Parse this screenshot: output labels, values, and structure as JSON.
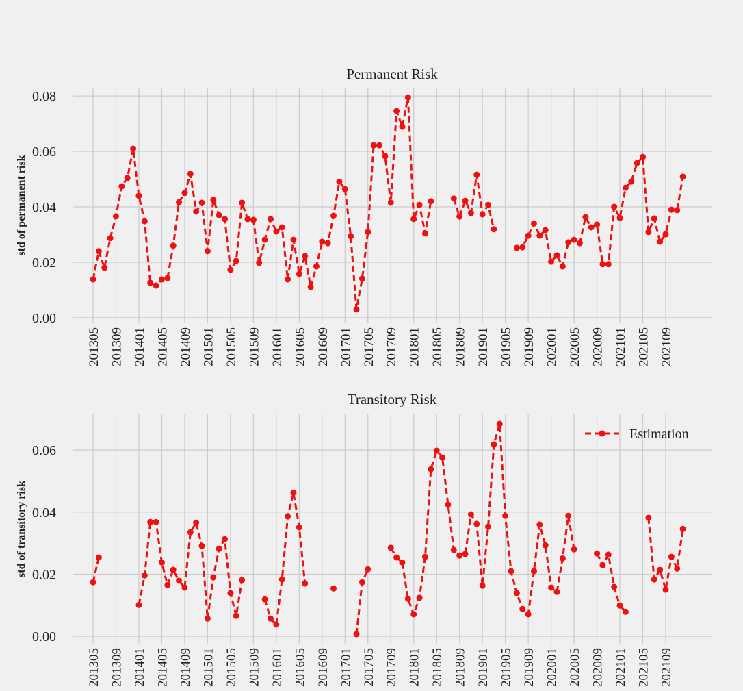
{
  "chart_data": [
    {
      "type": "line",
      "title": "Permanent Risk",
      "y_label": "std of permanent risk",
      "categories": [
        "201305",
        null,
        null,
        null,
        "201309",
        null,
        null,
        null,
        "201401",
        null,
        null,
        null,
        "201405",
        null,
        null,
        null,
        "201409",
        null,
        null,
        null,
        "201501",
        null,
        null,
        null,
        "201505",
        null,
        null,
        null,
        "201509",
        null,
        null,
        null,
        "201601",
        null,
        null,
        null,
        "201605",
        null,
        null,
        null,
        "201609",
        null,
        null,
        null,
        "201701",
        null,
        null,
        null,
        "201705",
        null,
        null,
        null,
        "201709",
        null,
        null,
        null,
        "201801",
        null,
        null,
        null,
        "201805",
        null,
        null,
        null,
        "201809",
        null,
        null,
        null,
        "201901",
        null,
        null,
        null,
        "201905",
        null,
        null,
        null,
        "201909",
        null,
        null,
        null,
        "202001",
        null,
        null,
        null,
        "202005",
        null,
        null,
        null,
        "202009",
        null,
        null,
        null,
        "202101",
        null,
        null,
        null,
        "202105",
        null,
        null,
        null,
        "202109",
        null,
        null,
        null
      ],
      "series": [
        {
          "color": "#ee1111",
          "values": [
            0.0138,
            0.024,
            0.018,
            0.0287,
            0.0366,
            0.0474,
            0.0504,
            0.061,
            0.044,
            0.0348,
            0.0126,
            0.0116,
            0.0138,
            0.0143,
            0.026,
            0.0417,
            0.045,
            0.0519,
            0.0383,
            0.0415,
            0.024,
            0.0425,
            0.037,
            0.0356,
            0.0173,
            0.0205,
            0.0415,
            0.0356,
            0.0353,
            0.0198,
            0.0281,
            0.0356,
            0.0311,
            0.0326,
            0.0138,
            0.0281,
            0.0158,
            0.0222,
            0.0111,
            0.0185,
            0.0274,
            0.0269,
            0.0368,
            0.0491,
            0.0464,
            0.0294,
            0.003,
            0.0141,
            0.0309,
            0.0622,
            0.0622,
            0.0583,
            0.0415,
            0.0746,
            0.0689,
            0.0795,
            0.0356,
            0.0407,
            0.0304,
            0.042,
            null,
            null,
            null,
            0.043,
            0.0365,
            0.0422,
            0.0378,
            0.0516,
            0.0373,
            0.0407,
            0.0319,
            null,
            null,
            null,
            0.0252,
            0.0254,
            0.0296,
            0.034,
            0.0296,
            0.0316,
            0.0202,
            0.0225,
            0.0185,
            0.0272,
            0.0281,
            0.0269,
            0.0363,
            0.0326,
            0.0336,
            0.0193,
            0.0193,
            0.04,
            0.036,
            0.0469,
            0.0491,
            0.0558,
            0.058,
            0.0309,
            0.0358,
            0.0274,
            0.0301,
            0.039,
            0.0388,
            0.0509
          ]
        }
      ],
      "ylim": [
        -0.002,
        0.083
      ],
      "yticks": [
        {
          "value": 0,
          "label": "0.00"
        },
        {
          "value": 0.02,
          "label": "0.02"
        },
        {
          "value": 0.04,
          "label": "0.04"
        },
        {
          "value": 0.06,
          "label": "0.06"
        },
        {
          "value": 0.08,
          "label": "0.08"
        }
      ],
      "grid": true
    },
    {
      "type": "line",
      "title": "Transitory Risk",
      "y_label": "std of transitory risk",
      "categories": [
        "201305",
        null,
        null,
        null,
        "201309",
        null,
        null,
        null,
        "201401",
        null,
        null,
        null,
        "201405",
        null,
        null,
        null,
        "201409",
        null,
        null,
        null,
        "201501",
        null,
        null,
        null,
        "201505",
        null,
        null,
        null,
        "201509",
        null,
        null,
        null,
        "201601",
        null,
        null,
        null,
        "201605",
        null,
        null,
        null,
        "201609",
        null,
        null,
        null,
        "201701",
        null,
        null,
        null,
        "201705",
        null,
        null,
        null,
        "201709",
        null,
        null,
        null,
        "201801",
        null,
        null,
        null,
        "201805",
        null,
        null,
        null,
        "201809",
        null,
        null,
        null,
        "201901",
        null,
        null,
        null,
        "201905",
        null,
        null,
        null,
        "201909",
        null,
        null,
        null,
        "202001",
        null,
        null,
        null,
        "202005",
        null,
        null,
        null,
        "202009",
        null,
        null,
        null,
        "202101",
        null,
        null,
        null,
        "202105",
        null,
        null,
        null,
        "202109",
        null,
        null,
        null
      ],
      "series": [
        {
          "name": "Estimation",
          "color": "#ee1111",
          "values": [
            0.0174,
            0.0254,
            null,
            null,
            null,
            null,
            null,
            null,
            0.0101,
            0.0196,
            0.0368,
            0.0368,
            0.0238,
            0.0165,
            0.0214,
            0.0179,
            0.0157,
            0.0335,
            0.0366,
            0.0291,
            0.0057,
            0.019,
            0.0282,
            0.0313,
            0.0139,
            0.0066,
            0.0181,
            null,
            null,
            null,
            0.0119,
            0.0057,
            0.0038,
            0.0183,
            0.0386,
            0.0463,
            0.0351,
            0.017,
            null,
            null,
            null,
            null,
            0.0154,
            null,
            null,
            null,
            0.0007,
            0.0174,
            0.0216,
            null,
            null,
            null,
            0.0285,
            0.0254,
            0.0238,
            0.0121,
            0.0071,
            0.0124,
            0.0256,
            0.0538,
            0.0598,
            0.0576,
            0.0424,
            0.0278,
            0.026,
            0.0265,
            0.0393,
            0.0362,
            0.0163,
            0.0353,
            0.0618,
            0.0684,
            0.0388,
            0.021,
            0.0139,
            0.0088,
            0.0071,
            0.021,
            0.036,
            0.0293,
            0.0157,
            0.0143,
            0.0251,
            0.0388,
            0.028,
            null,
            null,
            null,
            0.0267,
            0.0229,
            0.0263,
            0.0159,
            0.0099,
            0.0079,
            null,
            null,
            null,
            0.0382,
            0.0183,
            0.0214,
            0.015,
            0.0256,
            0.0218,
            0.0346
          ]
        }
      ],
      "ylim": [
        -0.0024,
        0.0715
      ],
      "yticks": [
        {
          "value": 0,
          "label": "0.00"
        },
        {
          "value": 0.02,
          "label": "0.02"
        },
        {
          "value": 0.04,
          "label": "0.04"
        },
        {
          "value": 0.06,
          "label": "0.06"
        }
      ],
      "grid": true,
      "legend": "upper right"
    }
  ]
}
